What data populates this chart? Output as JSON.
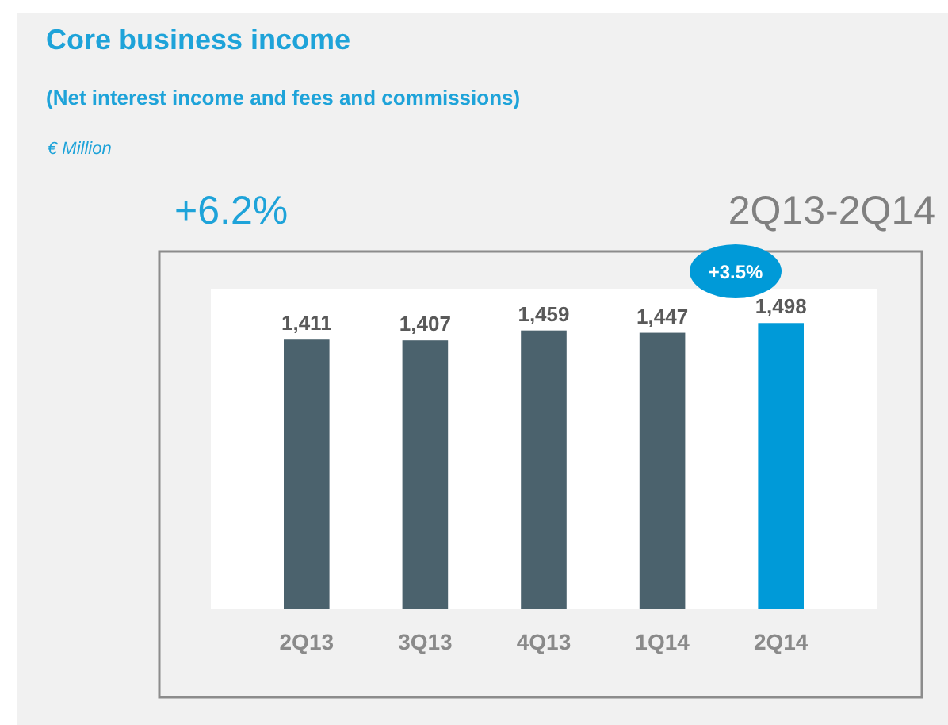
{
  "chart_data": {
    "type": "bar",
    "title": "Core business income",
    "subtitle": "(Net interest income and fees and commissions)",
    "categories": [
      "2Q13",
      "3Q13",
      "4Q13",
      "1Q14",
      "2Q14"
    ],
    "values": [
      1411,
      1407,
      1459,
      1447,
      1498
    ],
    "value_labels": [
      "1,411",
      "1,407",
      "1,459",
      "1,447",
      "1,498"
    ],
    "colors": [
      "#4b626d",
      "#4b626d",
      "#4b626d",
      "#4b626d",
      "#009ad8"
    ],
    "annotations": [
      "€ Million",
      "+6.2%",
      "2Q13-2Q14",
      "+3.5%"
    ]
  }
}
